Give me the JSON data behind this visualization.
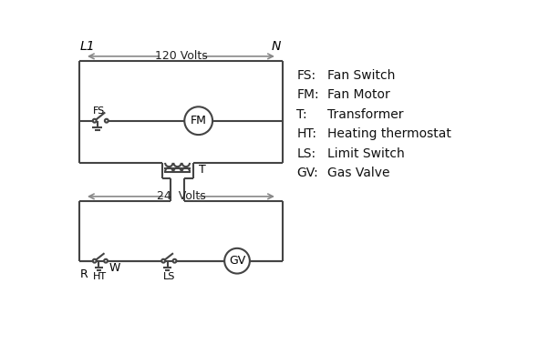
{
  "bg_color": "#ffffff",
  "line_color": "#444444",
  "gray_color": "#888888",
  "text_color": "#000000",
  "legend_items": [
    [
      "FS:",
      "Fan Switch"
    ],
    [
      "FM:",
      "Fan Motor"
    ],
    [
      "T:",
      "Transformer"
    ],
    [
      "HT:",
      "Heating thermostat"
    ],
    [
      "LS:",
      "Limit Switch"
    ],
    [
      "GV:",
      "Gas Valve"
    ]
  ],
  "L1_label": "L1",
  "N_label": "N",
  "volts_120": "120 Volts",
  "volts_24": "24  Volts",
  "transformer_label": "T",
  "labels": {
    "FS": "FS",
    "FM": "FM",
    "HT": "HT",
    "LS": "LS",
    "GV": "GV",
    "R": "R",
    "W": "W"
  }
}
